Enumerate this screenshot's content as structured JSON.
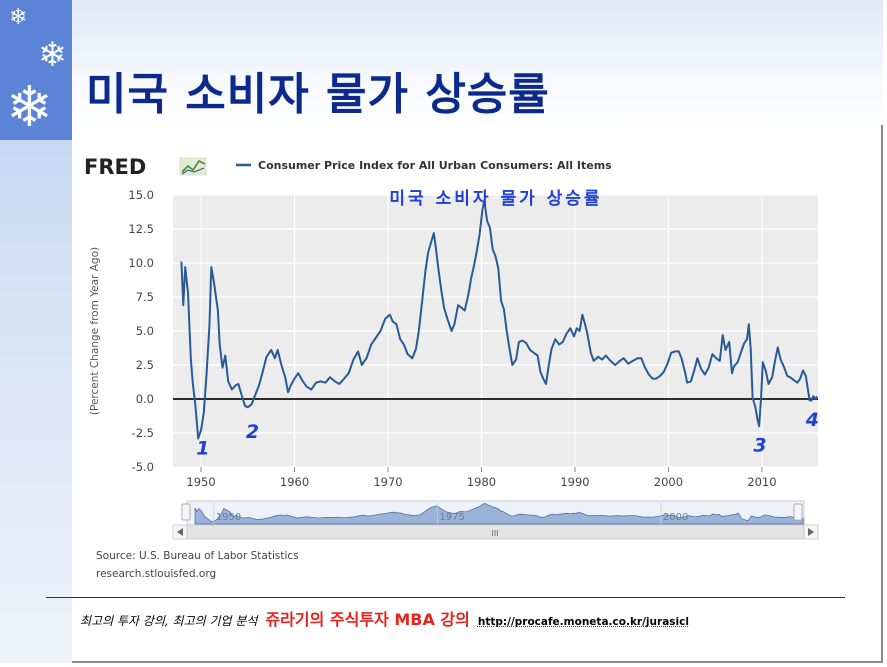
{
  "slide": {
    "title": "미국 소비자 물가 상승률",
    "footer": {
      "lecture_text": "최고의 투자 강의, 최고의 기업 분석",
      "course_text": "쥬라기의 주식투자 MBA 강의",
      "url_text": "http://procafe.moneta.co.kr/jurasicl"
    }
  },
  "decor": {
    "snowflake_icons": [
      "snowflake-icon",
      "snowflake-icon",
      "snowflake-icon"
    ],
    "fred_logo_text": "FRED",
    "fred_logo_icon": "trend-line-icon"
  },
  "chart_data": {
    "type": "line",
    "title": "",
    "annotation_title": "미국 소비자 물가 상승률",
    "ylabel": "(Percent Change from Year Ago)",
    "xlabel": "",
    "source_text": "Source: U.S. Bureau of Labor Statistics",
    "source_url": "research.stlouisfed.org",
    "ylim": [
      -5.0,
      15.0
    ],
    "xlim": [
      1947,
      2016
    ],
    "y_ticks": [
      "15.0",
      "12.5",
      "10.0",
      "7.5",
      "5.0",
      "2.5",
      "0.0",
      "-2.5",
      "-5.0"
    ],
    "x_ticks": [
      "1950",
      "1960",
      "1970",
      "1980",
      "1990",
      "2000",
      "2010"
    ],
    "navigator_ticks": [
      "1950",
      "1975",
      "2000"
    ],
    "navigator_scroll_label": "III",
    "grid": true,
    "legend": "top-left",
    "color": "#2a5a96",
    "markers": [
      {
        "label": "1",
        "x": 1950.2,
        "y": -2.9
      },
      {
        "label": "2",
        "x": 1955.5,
        "y": -1.7
      },
      {
        "label": "3",
        "x": 2009.8,
        "y": -2.7
      },
      {
        "label": "4",
        "x": 2015.4,
        "y": -0.8
      }
    ],
    "series": [
      {
        "name": "Consumer Price Index for All Urban Consumers: All Items",
        "color": "#2a5a96",
        "points": [
          [
            1947.9,
            10.1
          ],
          [
            1948.1,
            6.9
          ],
          [
            1948.3,
            9.7
          ],
          [
            1948.6,
            7.8
          ],
          [
            1948.9,
            3.0
          ],
          [
            1949.1,
            1.3
          ],
          [
            1949.4,
            -0.5
          ],
          [
            1949.7,
            -2.9
          ],
          [
            1950.0,
            -2.3
          ],
          [
            1950.3,
            -1.0
          ],
          [
            1950.6,
            2.0
          ],
          [
            1950.9,
            5.5
          ],
          [
            1951.1,
            9.7
          ],
          [
            1951.4,
            8.5
          ],
          [
            1951.8,
            6.5
          ],
          [
            1952.0,
            4.0
          ],
          [
            1952.3,
            2.3
          ],
          [
            1952.6,
            3.2
          ],
          [
            1952.9,
            1.3
          ],
          [
            1953.3,
            0.7
          ],
          [
            1953.7,
            1.0
          ],
          [
            1954.0,
            1.1
          ],
          [
            1954.3,
            0.4
          ],
          [
            1954.7,
            -0.5
          ],
          [
            1955.0,
            -0.6
          ],
          [
            1955.4,
            -0.4
          ],
          [
            1955.8,
            0.3
          ],
          [
            1956.2,
            1.0
          ],
          [
            1956.6,
            2.0
          ],
          [
            1957.0,
            3.1
          ],
          [
            1957.5,
            3.6
          ],
          [
            1957.9,
            3.0
          ],
          [
            1958.2,
            3.6
          ],
          [
            1958.6,
            2.5
          ],
          [
            1959.0,
            1.6
          ],
          [
            1959.3,
            0.5
          ],
          [
            1959.6,
            1.0
          ],
          [
            1960.0,
            1.5
          ],
          [
            1960.4,
            1.9
          ],
          [
            1960.8,
            1.4
          ],
          [
            1961.3,
            0.9
          ],
          [
            1961.8,
            0.7
          ],
          [
            1962.3,
            1.2
          ],
          [
            1962.8,
            1.3
          ],
          [
            1963.3,
            1.2
          ],
          [
            1963.8,
            1.6
          ],
          [
            1964.3,
            1.3
          ],
          [
            1964.8,
            1.1
          ],
          [
            1965.3,
            1.5
          ],
          [
            1965.8,
            1.9
          ],
          [
            1966.3,
            2.9
          ],
          [
            1966.8,
            3.5
          ],
          [
            1967.2,
            2.5
          ],
          [
            1967.7,
            3.0
          ],
          [
            1968.2,
            4.0
          ],
          [
            1968.7,
            4.5
          ],
          [
            1969.2,
            5.0
          ],
          [
            1969.7,
            5.9
          ],
          [
            1970.2,
            6.2
          ],
          [
            1970.5,
            5.7
          ],
          [
            1970.9,
            5.5
          ],
          [
            1971.3,
            4.4
          ],
          [
            1971.7,
            4.0
          ],
          [
            1972.1,
            3.3
          ],
          [
            1972.6,
            3.0
          ],
          [
            1973.0,
            3.7
          ],
          [
            1973.3,
            5.0
          ],
          [
            1973.7,
            7.5
          ],
          [
            1974.0,
            9.4
          ],
          [
            1974.3,
            10.8
          ],
          [
            1974.6,
            11.5
          ],
          [
            1974.9,
            12.2
          ],
          [
            1975.1,
            11.2
          ],
          [
            1975.4,
            9.5
          ],
          [
            1975.7,
            8.0
          ],
          [
            1976.0,
            6.7
          ],
          [
            1976.4,
            5.8
          ],
          [
            1976.8,
            5.0
          ],
          [
            1977.1,
            5.5
          ],
          [
            1977.5,
            6.9
          ],
          [
            1977.9,
            6.7
          ],
          [
            1978.2,
            6.5
          ],
          [
            1978.6,
            7.7
          ],
          [
            1978.9,
            8.9
          ],
          [
            1979.2,
            9.8
          ],
          [
            1979.5,
            10.9
          ],
          [
            1979.8,
            12.1
          ],
          [
            1980.1,
            13.9
          ],
          [
            1980.3,
            14.6
          ],
          [
            1980.6,
            13.1
          ],
          [
            1980.9,
            12.6
          ],
          [
            1981.2,
            11.0
          ],
          [
            1981.5,
            10.5
          ],
          [
            1981.8,
            9.6
          ],
          [
            1982.1,
            7.2
          ],
          [
            1982.4,
            6.6
          ],
          [
            1982.7,
            5.0
          ],
          [
            1983.0,
            3.7
          ],
          [
            1983.3,
            2.5
          ],
          [
            1983.7,
            2.9
          ],
          [
            1984.0,
            4.2
          ],
          [
            1984.4,
            4.3
          ],
          [
            1984.8,
            4.1
          ],
          [
            1985.2,
            3.6
          ],
          [
            1985.6,
            3.4
          ],
          [
            1986.0,
            3.2
          ],
          [
            1986.3,
            2.0
          ],
          [
            1986.6,
            1.5
          ],
          [
            1986.9,
            1.1
          ],
          [
            1987.2,
            2.5
          ],
          [
            1987.5,
            3.7
          ],
          [
            1987.9,
            4.4
          ],
          [
            1988.3,
            4.0
          ],
          [
            1988.7,
            4.2
          ],
          [
            1989.1,
            4.8
          ],
          [
            1989.5,
            5.2
          ],
          [
            1989.9,
            4.6
          ],
          [
            1990.2,
            5.2
          ],
          [
            1990.5,
            5.0
          ],
          [
            1990.8,
            6.2
          ],
          [
            1991.0,
            5.7
          ],
          [
            1991.3,
            4.9
          ],
          [
            1991.7,
            3.4
          ],
          [
            1992.0,
            2.8
          ],
          [
            1992.5,
            3.1
          ],
          [
            1992.9,
            2.9
          ],
          [
            1993.3,
            3.2
          ],
          [
            1993.8,
            2.8
          ],
          [
            1994.3,
            2.5
          ],
          [
            1994.8,
            2.8
          ],
          [
            1995.2,
            3.0
          ],
          [
            1995.7,
            2.6
          ],
          [
            1996.2,
            2.8
          ],
          [
            1996.7,
            3.0
          ],
          [
            1997.1,
            3.0
          ],
          [
            1997.5,
            2.3
          ],
          [
            1997.9,
            1.8
          ],
          [
            1998.3,
            1.5
          ],
          [
            1998.7,
            1.5
          ],
          [
            1999.1,
            1.7
          ],
          [
            1999.5,
            2.0
          ],
          [
            1999.9,
            2.6
          ],
          [
            2000.3,
            3.4
          ],
          [
            2000.7,
            3.5
          ],
          [
            2001.1,
            3.5
          ],
          [
            2001.4,
            3.0
          ],
          [
            2001.8,
            1.9
          ],
          [
            2002.0,
            1.2
          ],
          [
            2002.4,
            1.3
          ],
          [
            2002.8,
            2.2
          ],
          [
            2003.1,
            3.0
          ],
          [
            2003.5,
            2.2
          ],
          [
            2003.9,
            1.8
          ],
          [
            2004.3,
            2.3
          ],
          [
            2004.7,
            3.3
          ],
          [
            2005.1,
            3.0
          ],
          [
            2005.5,
            2.8
          ],
          [
            2005.8,
            4.7
          ],
          [
            2006.1,
            3.6
          ],
          [
            2006.5,
            4.2
          ],
          [
            2006.8,
            1.9
          ],
          [
            2007.0,
            2.4
          ],
          [
            2007.4,
            2.7
          ],
          [
            2007.8,
            3.5
          ],
          [
            2008.1,
            4.1
          ],
          [
            2008.4,
            4.4
          ],
          [
            2008.6,
            5.5
          ],
          [
            2008.8,
            3.7
          ],
          [
            2009.0,
            0.1
          ],
          [
            2009.3,
            -0.6
          ],
          [
            2009.5,
            -1.4
          ],
          [
            2009.7,
            -2.0
          ],
          [
            2009.9,
            0.0
          ],
          [
            2010.1,
            2.7
          ],
          [
            2010.4,
            2.1
          ],
          [
            2010.7,
            1.1
          ],
          [
            2011.1,
            1.6
          ],
          [
            2011.4,
            2.8
          ],
          [
            2011.7,
            3.8
          ],
          [
            2012.0,
            2.9
          ],
          [
            2012.4,
            2.3
          ],
          [
            2012.7,
            1.7
          ],
          [
            2013.0,
            1.6
          ],
          [
            2013.4,
            1.4
          ],
          [
            2013.8,
            1.2
          ],
          [
            2014.1,
            1.5
          ],
          [
            2014.4,
            2.1
          ],
          [
            2014.7,
            1.7
          ],
          [
            2014.9,
            0.8
          ],
          [
            2015.1,
            -0.1
          ],
          [
            2015.3,
            -0.1
          ],
          [
            2015.5,
            0.2
          ],
          [
            2015.7,
            0.0
          ],
          [
            2015.9,
            0.2
          ]
        ]
      }
    ]
  }
}
